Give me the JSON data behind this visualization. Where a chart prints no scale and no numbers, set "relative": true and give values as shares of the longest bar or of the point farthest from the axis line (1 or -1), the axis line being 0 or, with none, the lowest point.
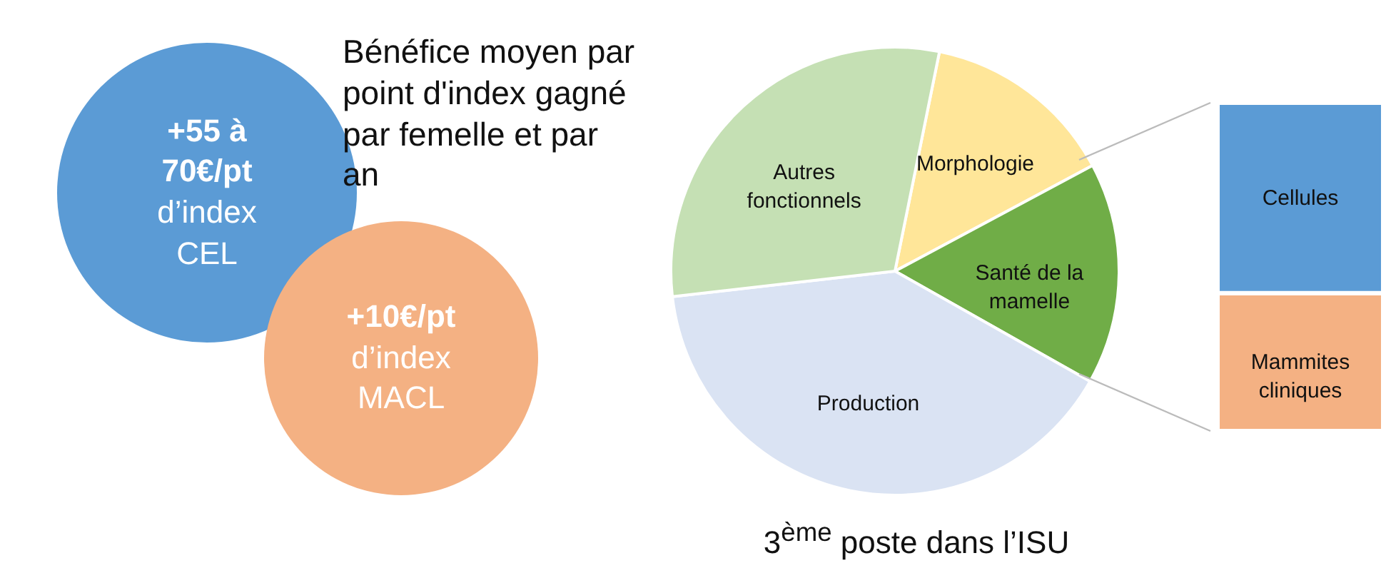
{
  "chart_data": [
    {
      "type": "other",
      "title": "Bénéfice moyen par point d'index gagné par femelle et par an",
      "annotations": [
        "+55 à 70€/pt",
        "d’index CEL",
        "+10€/pt",
        "d’index MACL"
      ]
    },
    {
      "type": "pie",
      "categories": [
        "Morphologie",
        "Santé de la mamelle",
        "Production",
        "Autres fonctionnels"
      ],
      "values": [
        14,
        16,
        40,
        30
      ],
      "colors": [
        "#ffe699",
        "#70ad47",
        "#dae3f3",
        "#c5e0b4"
      ],
      "annotations": [
        "3$^{ème}$ poste dans l’ISU"
      ]
    },
    {
      "type": "bar",
      "categories": [
        null
      ],
      "stacked": true,
      "relative": true,
      "series": [
        {
          "name": "Mammites cliniques",
          "color": "#f4b183",
          "values": [
            0.42
          ]
        },
        {
          "name": "Cellules",
          "color": "#5b9bd5",
          "values": [
            0.58
          ]
        }
      ]
    }
  ]
}
